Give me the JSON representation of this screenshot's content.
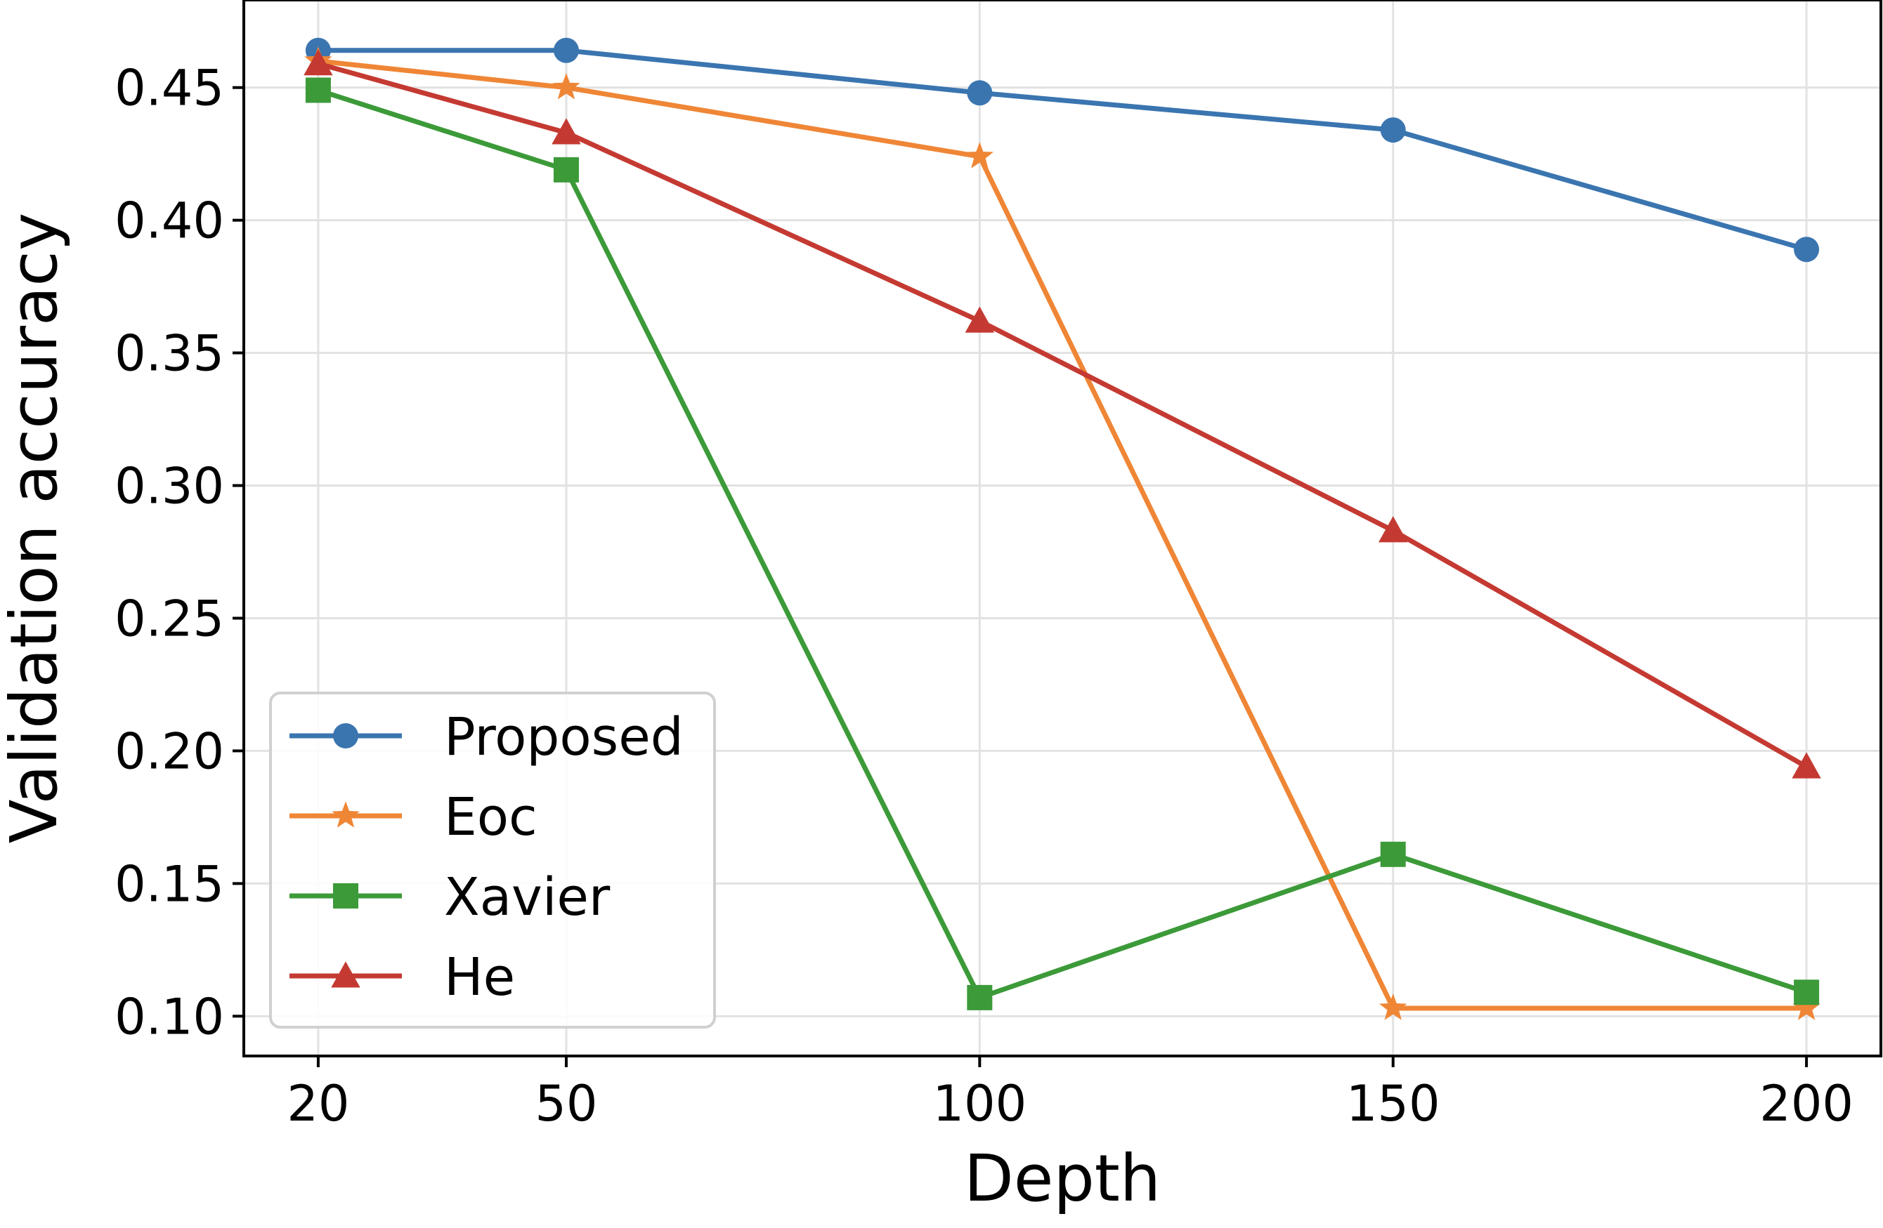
{
  "chart_data": {
    "type": "line",
    "title": "",
    "xlabel": "Depth",
    "ylabel": "Validation accuracy",
    "x": [
      20,
      50,
      100,
      150,
      200
    ],
    "xticks": [
      "20",
      "50",
      "100",
      "150",
      "200"
    ],
    "yticks": [
      "0.10",
      "0.15",
      "0.20",
      "0.25",
      "0.30",
      "0.35",
      "0.40",
      "0.45"
    ],
    "xlim": [
      11,
      209
    ],
    "ylim": [
      0.085,
      0.483
    ],
    "grid": true,
    "legend_position": "lower-left",
    "series": [
      {
        "name": "Proposed",
        "color": "#3a75b0",
        "marker": "circle",
        "values": [
          0.464,
          0.464,
          0.448,
          0.434,
          0.389
        ]
      },
      {
        "name": "Eoc",
        "color": "#ef8636",
        "marker": "star",
        "values": [
          0.46,
          0.45,
          0.424,
          0.103,
          0.103
        ]
      },
      {
        "name": "Xavier",
        "color": "#3c9a39",
        "marker": "square",
        "values": [
          0.449,
          0.419,
          0.107,
          0.161,
          0.109
        ]
      },
      {
        "name": "He",
        "color": "#c43a32",
        "marker": "triangle",
        "values": [
          0.459,
          0.433,
          0.362,
          0.283,
          0.194
        ]
      }
    ]
  }
}
